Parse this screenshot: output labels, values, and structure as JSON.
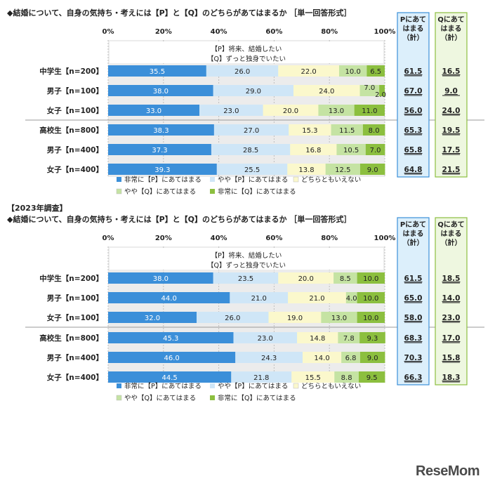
{
  "panels": [
    {
      "year_label": "",
      "question": "◆結婚について、自身の気持ち・考えには【P】と【Q】のどちらがあてはまるか ［単一回答形式］",
      "box_text_p": "【P】将来、結婚したい",
      "box_text_q": "【Q】ずっと独身でいたい",
      "summary_headers": {
        "p": [
          "Pにあて",
          "はまる",
          "（計）"
        ],
        "q": [
          "Qにあて",
          "はまる",
          "（計）"
        ]
      },
      "rows": [
        {
          "label": "中学生【n=200】",
          "values": [
            35.5,
            26.0,
            22.0,
            10.0,
            6.5
          ],
          "labels": [
            "35.5",
            "26.0",
            "22.0",
            "10.0",
            "6.5"
          ],
          "p_total": "61.5",
          "q_total": "16.5"
        },
        {
          "label": "男子【n=100】",
          "values": [
            38.0,
            29.0,
            24.0,
            7.0,
            2.0
          ],
          "labels": [
            "38.0",
            "29.0",
            "24.0",
            "7.0",
            "2.0"
          ],
          "p_total": "67.0",
          "q_total": "9.0"
        },
        {
          "label": "女子【n=100】",
          "values": [
            33.0,
            23.0,
            20.0,
            13.0,
            11.0
          ],
          "labels": [
            "33.0",
            "23.0",
            "20.0",
            "13.0",
            "11.0"
          ],
          "p_total": "56.0",
          "q_total": "24.0"
        },
        {
          "label": "高校生【n=800】",
          "values": [
            38.3,
            27.0,
            15.3,
            11.5,
            8.0
          ],
          "labels": [
            "38.3",
            "27.0",
            "15.3",
            "11.5",
            "8.0"
          ],
          "p_total": "65.3",
          "q_total": "19.5"
        },
        {
          "label": "男子【n=400】",
          "values": [
            37.3,
            28.5,
            16.8,
            10.5,
            7.0
          ],
          "labels": [
            "37.3",
            "28.5",
            "16.8",
            "10.5",
            "7.0"
          ],
          "p_total": "65.8",
          "q_total": "17.5"
        },
        {
          "label": "女子【n=400】",
          "values": [
            39.3,
            25.5,
            13.8,
            12.5,
            9.0
          ],
          "labels": [
            "39.3",
            "25.5",
            "13.8",
            "12.5",
            "9.0"
          ],
          "p_total": "64.8",
          "q_total": "21.5"
        }
      ]
    },
    {
      "year_label": "【2023年調査】",
      "question": "◆結婚について、自身の気持ち・考えには【P】と【Q】のどちらがあてはまるか ［単一回答形式］",
      "box_text_p": "【P】将来、結婚したい",
      "box_text_q": "【Q】ずっと独身でいたい",
      "summary_headers": {
        "p": [
          "Pにあて",
          "はまる",
          "（計）"
        ],
        "q": [
          "Qにあて",
          "はまる",
          "（計）"
        ]
      },
      "rows": [
        {
          "label": "中学生【n=200】",
          "values": [
            38.0,
            23.5,
            20.0,
            8.5,
            10.0
          ],
          "labels": [
            "38.0",
            "23.5",
            "20.0",
            "8.5",
            "10.0"
          ],
          "p_total": "61.5",
          "q_total": "18.5"
        },
        {
          "label": "男子【n=100】",
          "values": [
            44.0,
            21.0,
            21.0,
            4.0,
            10.0
          ],
          "labels": [
            "44.0",
            "21.0",
            "21.0",
            "4.0",
            "10.0"
          ],
          "p_total": "65.0",
          "q_total": "14.0"
        },
        {
          "label": "女子【n=100】",
          "values": [
            32.0,
            26.0,
            19.0,
            13.0,
            10.0
          ],
          "labels": [
            "32.0",
            "26.0",
            "19.0",
            "13.0",
            "10.0"
          ],
          "p_total": "58.0",
          "q_total": "23.0"
        },
        {
          "label": "高校生【n=800】",
          "values": [
            45.3,
            23.0,
            14.8,
            7.8,
            9.3
          ],
          "labels": [
            "45.3",
            "23.0",
            "14.8",
            "7.8",
            "9.3"
          ],
          "p_total": "68.3",
          "q_total": "17.0"
        },
        {
          "label": "男子【n=400】",
          "values": [
            46.0,
            24.3,
            14.0,
            6.8,
            9.0
          ],
          "labels": [
            "46.0",
            "24.3",
            "14.0",
            "6.8",
            "9.0"
          ],
          "p_total": "70.3",
          "q_total": "15.8"
        },
        {
          "label": "女子【n=400】",
          "values": [
            44.5,
            21.8,
            15.5,
            8.8,
            9.5
          ],
          "labels": [
            "44.5",
            "21.8",
            "15.5",
            "8.8",
            "9.5"
          ],
          "p_total": "66.3",
          "q_total": "18.3"
        }
      ]
    }
  ],
  "chart_data": {
    "type": "bar",
    "orientation": "horizontal-stacked-100",
    "xlim": [
      0,
      100
    ],
    "xticks": [
      "0%",
      "20%",
      "40%",
      "60%",
      "80%",
      "100%"
    ],
    "legend": [
      "非常に【P】にあてはまる",
      "やや【P】にあてはまる",
      "どちらともいえない",
      "やや【Q】にあてはまる",
      "非常に【Q】にあてはまる"
    ],
    "legend_position": "bottom",
    "colors": [
      "#3b8fd9",
      "#cfe6f7",
      "#fbf8cc",
      "#c5e3a3",
      "#8cbf3f"
    ],
    "charts": [
      {
        "categories": [
          "中学生【n=200】",
          "男子【n=100】",
          "女子【n=100】",
          "高校生【n=800】",
          "男子【n=400】",
          "女子【n=400】"
        ],
        "series": [
          {
            "name": "非常に【P】にあてはまる",
            "values": [
              35.5,
              38.0,
              33.0,
              38.3,
              37.3,
              39.3
            ]
          },
          {
            "name": "やや【P】にあてはまる",
            "values": [
              26.0,
              29.0,
              23.0,
              27.0,
              28.5,
              25.5
            ]
          },
          {
            "name": "どちらともいえない",
            "values": [
              22.0,
              24.0,
              20.0,
              15.3,
              16.8,
              13.8
            ]
          },
          {
            "name": "やや【Q】にあてはまる",
            "values": [
              10.0,
              7.0,
              13.0,
              11.5,
              10.5,
              12.5
            ]
          },
          {
            "name": "非常に【Q】にあてはまる",
            "values": [
              6.5,
              2.0,
              11.0,
              8.0,
              7.0,
              9.0
            ]
          }
        ],
        "p_total": [
          61.5,
          67.0,
          56.0,
          65.3,
          65.8,
          64.8
        ],
        "q_total": [
          16.5,
          9.0,
          24.0,
          19.5,
          17.5,
          21.5
        ]
      },
      {
        "title": "【2023年調査】",
        "categories": [
          "中学生【n=200】",
          "男子【n=100】",
          "女子【n=100】",
          "高校生【n=800】",
          "男子【n=400】",
          "女子【n=400】"
        ],
        "series": [
          {
            "name": "非常に【P】にあてはまる",
            "values": [
              38.0,
              44.0,
              32.0,
              45.3,
              46.0,
              44.5
            ]
          },
          {
            "name": "やや【P】にあてはまる",
            "values": [
              23.5,
              21.0,
              26.0,
              23.0,
              24.3,
              21.8
            ]
          },
          {
            "name": "どちらともいえない",
            "values": [
              20.0,
              21.0,
              19.0,
              14.8,
              14.0,
              15.5
            ]
          },
          {
            "name": "やや【Q】にあてはまる",
            "values": [
              8.5,
              4.0,
              13.0,
              7.8,
              6.8,
              8.8
            ]
          },
          {
            "name": "非常に【Q】にあてはまる",
            "values": [
              10.0,
              10.0,
              10.0,
              9.3,
              9.0,
              9.5
            ]
          }
        ],
        "p_total": [
          61.5,
          65.0,
          58.0,
          68.3,
          70.3,
          66.3
        ],
        "q_total": [
          18.5,
          14.0,
          23.0,
          17.0,
          15.8,
          18.3
        ]
      }
    ]
  },
  "watermark": "ReseMom"
}
